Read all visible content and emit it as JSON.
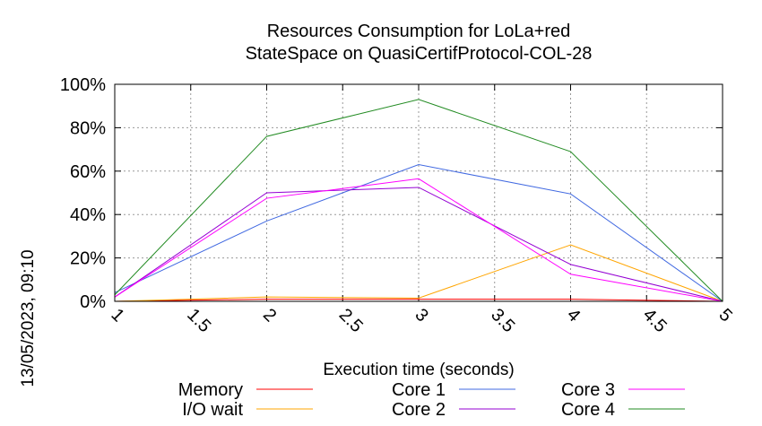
{
  "chart_data": {
    "type": "line",
    "title_lines": [
      "Resources Consumption for LoLa+red",
      "StateSpace on QuasiCertifProtocol-COL-28"
    ],
    "xlabel": "Execution time (seconds)",
    "ylabel": "",
    "side_label": "13/05/2023, 09:10",
    "xlim": [
      1,
      5
    ],
    "ylim": [
      0,
      100
    ],
    "x_ticks": [
      1,
      1.5,
      2,
      2.5,
      3,
      3.5,
      4,
      4.5,
      5
    ],
    "x_tick_labels": [
      "1",
      "1.5",
      "2",
      "2.5",
      "3",
      "3.5",
      "4",
      "4.5",
      "5"
    ],
    "y_ticks": [
      0,
      20,
      40,
      60,
      80,
      100
    ],
    "y_tick_labels": [
      "0%",
      "20%",
      "40%",
      "60%",
      "80%",
      "100%"
    ],
    "grid": true,
    "legend_position": "bottom",
    "x": [
      1,
      2,
      3,
      4,
      5
    ],
    "series": [
      {
        "name": "Memory",
        "color": "#ff0000",
        "values": [
          0,
          1,
          1,
          1,
          0
        ]
      },
      {
        "name": "I/O wait",
        "color": "#ffa500",
        "values": [
          0,
          2,
          1.5,
          26,
          0
        ]
      },
      {
        "name": "Core 1",
        "color": "#4169e1",
        "values": [
          4,
          37,
          63,
          49.5,
          0
        ]
      },
      {
        "name": "Core 2",
        "color": "#9400d3",
        "values": [
          2,
          50,
          52.5,
          17,
          0
        ]
      },
      {
        "name": "Core 3",
        "color": "#ff00ff",
        "values": [
          2,
          47.5,
          56.5,
          12.5,
          0
        ]
      },
      {
        "name": "Core 4",
        "color": "#228b22",
        "values": [
          3,
          76,
          93,
          69,
          0
        ]
      }
    ]
  }
}
